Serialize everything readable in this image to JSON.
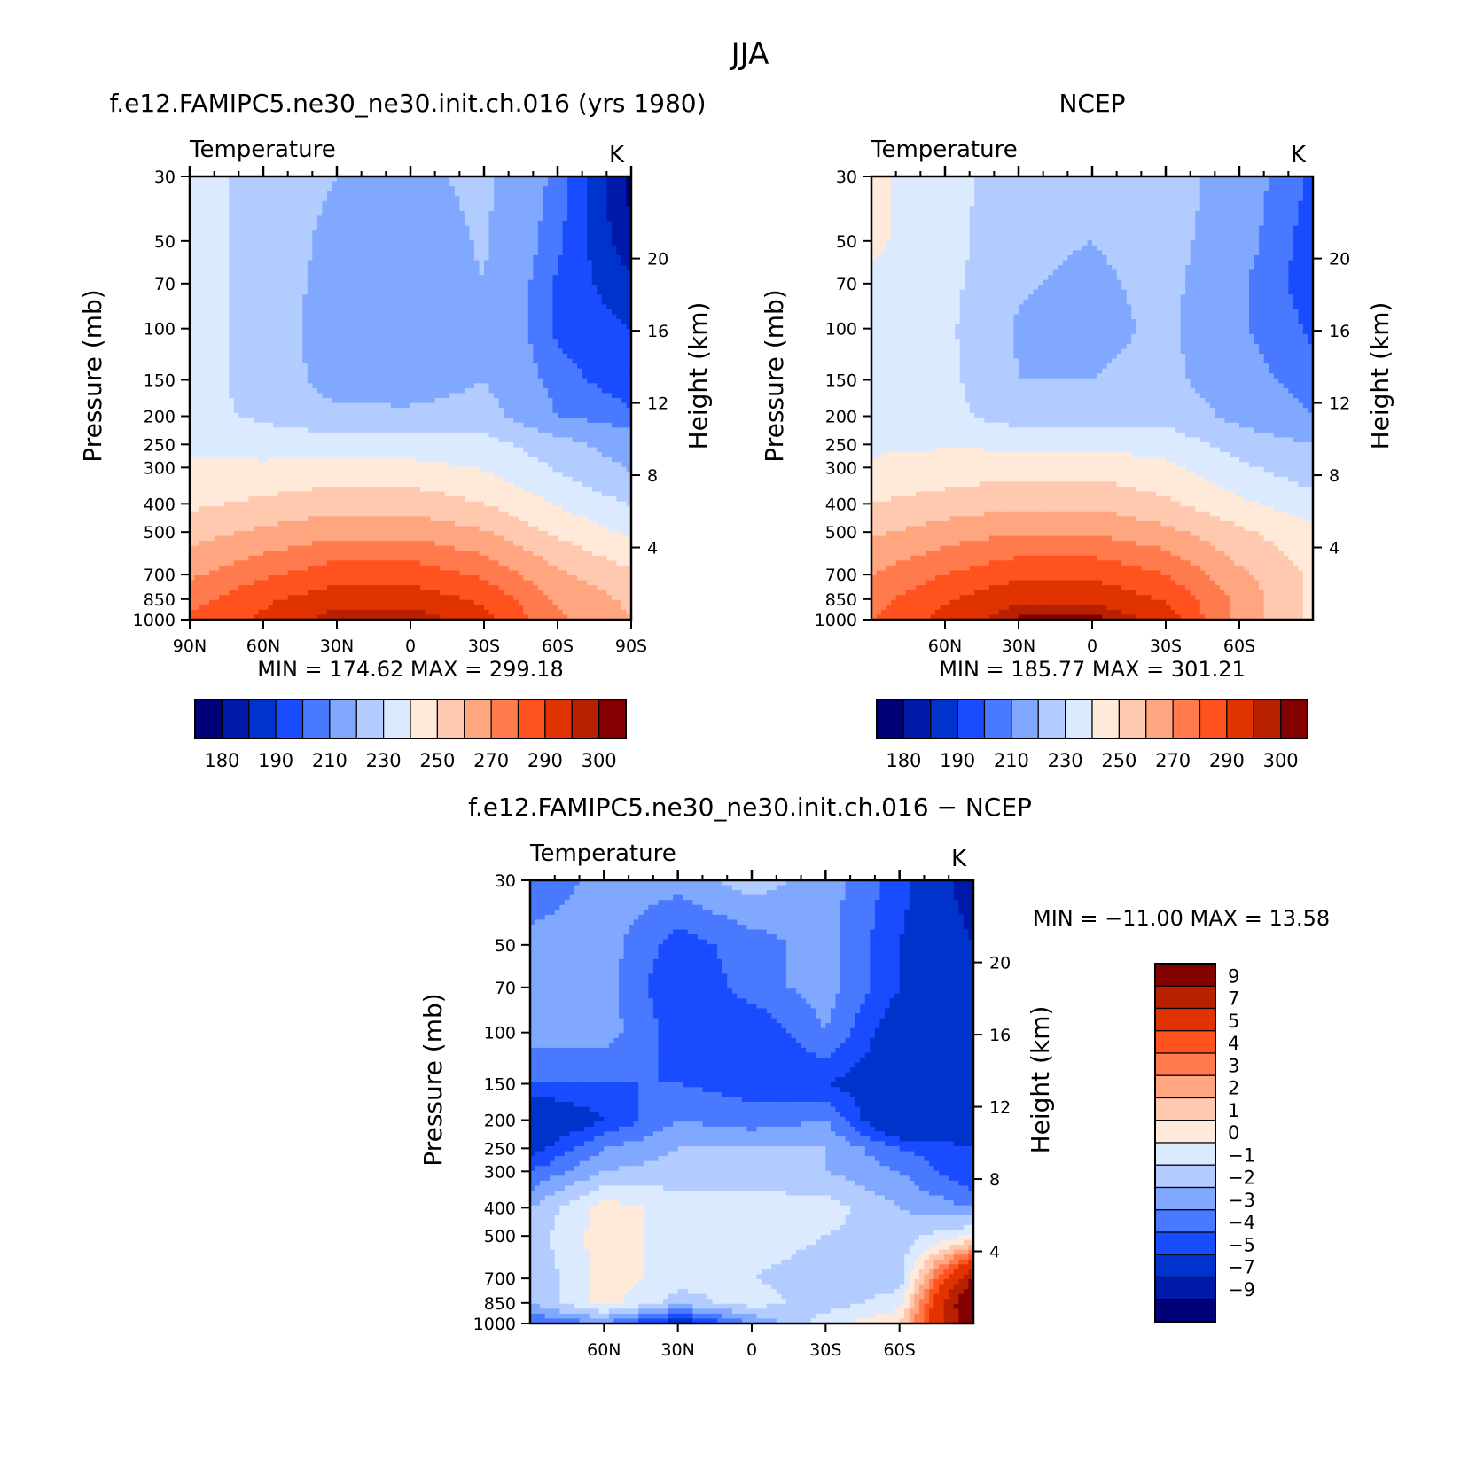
{
  "figure": {
    "title": "JJA"
  },
  "colors": {
    "abs_fill": [
      "#000077",
      "#0019a8",
      "#0033cc",
      "#1a4cff",
      "#4979ff",
      "#80a8ff",
      "#b3ccff",
      "#dbeaff",
      "#ffe9d8",
      "#ffc9b0",
      "#ffa680",
      "#ff7a4d",
      "#ff521f",
      "#e03300",
      "#b82000",
      "#850000"
    ],
    "diff_fill": [
      "#000077",
      "#0019a8",
      "#0033cc",
      "#1a4cff",
      "#4979ff",
      "#80a8ff",
      "#b3ccff",
      "#dbeaff",
      "#ffe9d8",
      "#ffc9b0",
      "#ffa680",
      "#ff7a4d",
      "#ff521f",
      "#e03300",
      "#b82000",
      "#850000"
    ]
  },
  "chart_data": [
    {
      "id": "model",
      "type": "heatmap",
      "title": "f.e12.FAMIPC5.ne30_ne30.init.ch.016 (yrs 1980)",
      "subtitle_left": "Temperature",
      "units": "K",
      "ylabel": "Pressure (mb)",
      "ylabel_right": "Height (km)",
      "x_ticks": [
        "90N",
        "60N",
        "30N",
        "0",
        "30S",
        "60S",
        "90S"
      ],
      "y_ticks": [
        "30",
        "50",
        "70",
        "100",
        "150",
        "200",
        "250",
        "300",
        "400",
        "500",
        "700",
        "850",
        "1000"
      ],
      "y_ticks_right": [
        "20",
        "16",
        "12",
        "8",
        "4"
      ],
      "stats": "MIN = 174.62   MAX = 299.18",
      "levels": [
        175,
        180,
        185,
        190,
        195,
        200,
        210,
        220,
        230,
        240,
        250,
        260,
        270,
        280,
        290,
        295,
        300
      ],
      "colorbar_labels": [
        "180",
        "190",
        "210",
        "230",
        "250",
        "270",
        "290",
        "300"
      ],
      "lat": [
        90,
        60,
        30,
        0,
        -30,
        -60,
        -90
      ],
      "pressure": [
        30,
        50,
        70,
        100,
        150,
        200,
        250,
        300,
        400,
        500,
        700,
        850,
        1000
      ],
      "values": [
        [
          224,
          216,
          210,
          208,
          212,
          198,
          178
        ],
        [
          224,
          216,
          207,
          205,
          211,
          196,
          181
        ],
        [
          224,
          216,
          206,
          204,
          210,
          194,
          186
        ],
        [
          224,
          216,
          204,
          201,
          208,
          194,
          190
        ],
        [
          224,
          216,
          206,
          205,
          210,
          197,
          192
        ],
        [
          224,
          218,
          212,
          212,
          214,
          200,
          196
        ],
        [
          228,
          226,
          226,
          225,
          224,
          214,
          204
        ],
        [
          232,
          232,
          234,
          233,
          229,
          219,
          209
        ],
        [
          238,
          242,
          246,
          246,
          240,
          229,
          219
        ],
        [
          246,
          252,
          257,
          257,
          251,
          238,
          228
        ],
        [
          258,
          268,
          276,
          276,
          268,
          252,
          242
        ],
        [
          266,
          278,
          286,
          286,
          278,
          258,
          248
        ],
        [
          272,
          282,
          294,
          296,
          284,
          262,
          250
        ]
      ]
    },
    {
      "id": "ncep",
      "type": "heatmap",
      "title": "NCEP",
      "subtitle_left": "Temperature",
      "units": "K",
      "ylabel": "Pressure (mb)",
      "ylabel_right": "Height (km)",
      "x_ticks": [
        "60N",
        "30N",
        "0",
        "30S",
        "60S"
      ],
      "y_ticks": [
        "30",
        "50",
        "70",
        "100",
        "150",
        "200",
        "250",
        "300",
        "400",
        "500",
        "700",
        "850",
        "1000"
      ],
      "y_ticks_right": [
        "20",
        "16",
        "12",
        "8",
        "4"
      ],
      "stats": "MIN = 185.77   MAX = 301.21",
      "levels": [
        175,
        180,
        185,
        190,
        195,
        200,
        210,
        220,
        230,
        240,
        250,
        260,
        270,
        280,
        290,
        295,
        300
      ],
      "colorbar_labels": [
        "180",
        "190",
        "210",
        "230",
        "250",
        "270",
        "290",
        "300"
      ],
      "lat": [
        90,
        60,
        30,
        0,
        -30,
        -60,
        -90
      ],
      "pressure": [
        30,
        50,
        70,
        100,
        150,
        200,
        250,
        300,
        400,
        500,
        700,
        850,
        1000
      ],
      "values": [
        [
          232,
          224,
          214,
          212,
          216,
          204,
          194
        ],
        [
          232,
          224,
          212,
          210,
          214,
          203,
          192
        ],
        [
          228,
          223,
          211,
          208,
          213,
          201,
          192
        ],
        [
          226,
          222,
          209,
          207,
          212,
          201,
          194
        ],
        [
          226,
          223,
          210,
          210,
          213,
          203,
          197
        ],
        [
          226,
          223,
          215,
          216,
          217,
          207,
          200
        ],
        [
          228,
          229,
          228,
          228,
          226,
          216,
          210
        ],
        [
          232,
          234,
          236,
          236,
          232,
          222,
          214
        ],
        [
          240,
          244,
          248,
          248,
          242,
          232,
          224
        ],
        [
          248,
          255,
          259,
          259,
          253,
          242,
          233
        ],
        [
          260,
          270,
          278,
          278,
          270,
          252,
          238
        ],
        [
          266,
          279,
          288,
          288,
          279,
          257,
          238
        ],
        [
          270,
          283,
          296,
          298,
          286,
          256,
          238
        ]
      ]
    },
    {
      "id": "diff",
      "type": "heatmap",
      "title": "f.e12.FAMIPC5.ne30_ne30.init.ch.016 − NCEP",
      "subtitle_left": "Temperature",
      "units": "K",
      "ylabel": "Pressure (mb)",
      "ylabel_right": "Height (km)",
      "x_ticks": [
        "60N",
        "30N",
        "0",
        "30S",
        "60S"
      ],
      "y_ticks": [
        "30",
        "50",
        "70",
        "100",
        "150",
        "200",
        "250",
        "300",
        "400",
        "500",
        "700",
        "850",
        "1000"
      ],
      "y_ticks_right": [
        "20",
        "16",
        "12",
        "8",
        "4"
      ],
      "stats": "MIN = −11.00   MAX =   13.58",
      "levels": [
        -11,
        -9,
        -7,
        -5,
        -4,
        -3,
        -2,
        -1,
        0,
        1,
        2,
        3,
        4,
        5,
        7,
        9,
        11
      ],
      "colorbar_labels": [
        "9",
        "7",
        "5",
        "4",
        "3",
        "2",
        "1",
        "0",
        "−1",
        "−2",
        "−3",
        "−4",
        "−5",
        "−7",
        "−9"
      ],
      "lat": [
        90,
        60,
        30,
        0,
        -30,
        -60,
        -90
      ],
      "pressure": [
        30,
        50,
        70,
        100,
        150,
        200,
        250,
        300,
        400,
        500,
        700,
        850,
        1000
      ],
      "values": [
        [
          -4,
          -2.5,
          -2.5,
          -1.5,
          -2.5,
          -4.5,
          -8
        ],
        [
          -2.5,
          -2.5,
          -4.5,
          -3.5,
          -2.5,
          -5,
          -7
        ],
        [
          -2.5,
          -2.5,
          -5,
          -3.5,
          -2.5,
          -5,
          -6
        ],
        [
          -2.5,
          -2.5,
          -4.5,
          -5,
          -3,
          -6,
          -6
        ],
        [
          -4,
          -4,
          -4,
          -4.5,
          -5,
          -6,
          -6
        ],
        [
          -7,
          -5,
          -3,
          -3.5,
          -3,
          -7,
          -6
        ],
        [
          -5.5,
          -3,
          -2,
          -2,
          -2,
          -4,
          -5
        ],
        [
          -4,
          -2,
          -1.5,
          -1.5,
          -2,
          -3,
          -5
        ],
        [
          -2,
          0.5,
          -0.5,
          -0.5,
          -0.5,
          -2,
          -3
        ],
        [
          -1.5,
          0.5,
          -0.5,
          -0.5,
          -1,
          -1.5,
          0
        ],
        [
          -2,
          0.5,
          -0.5,
          -1,
          -1.5,
          -1.5,
          9
        ],
        [
          -2,
          0.5,
          -1.5,
          -0.5,
          -1.5,
          -0.5,
          12
        ],
        [
          -4,
          -3,
          -6,
          -3,
          -0.5,
          1,
          11
        ]
      ]
    }
  ]
}
